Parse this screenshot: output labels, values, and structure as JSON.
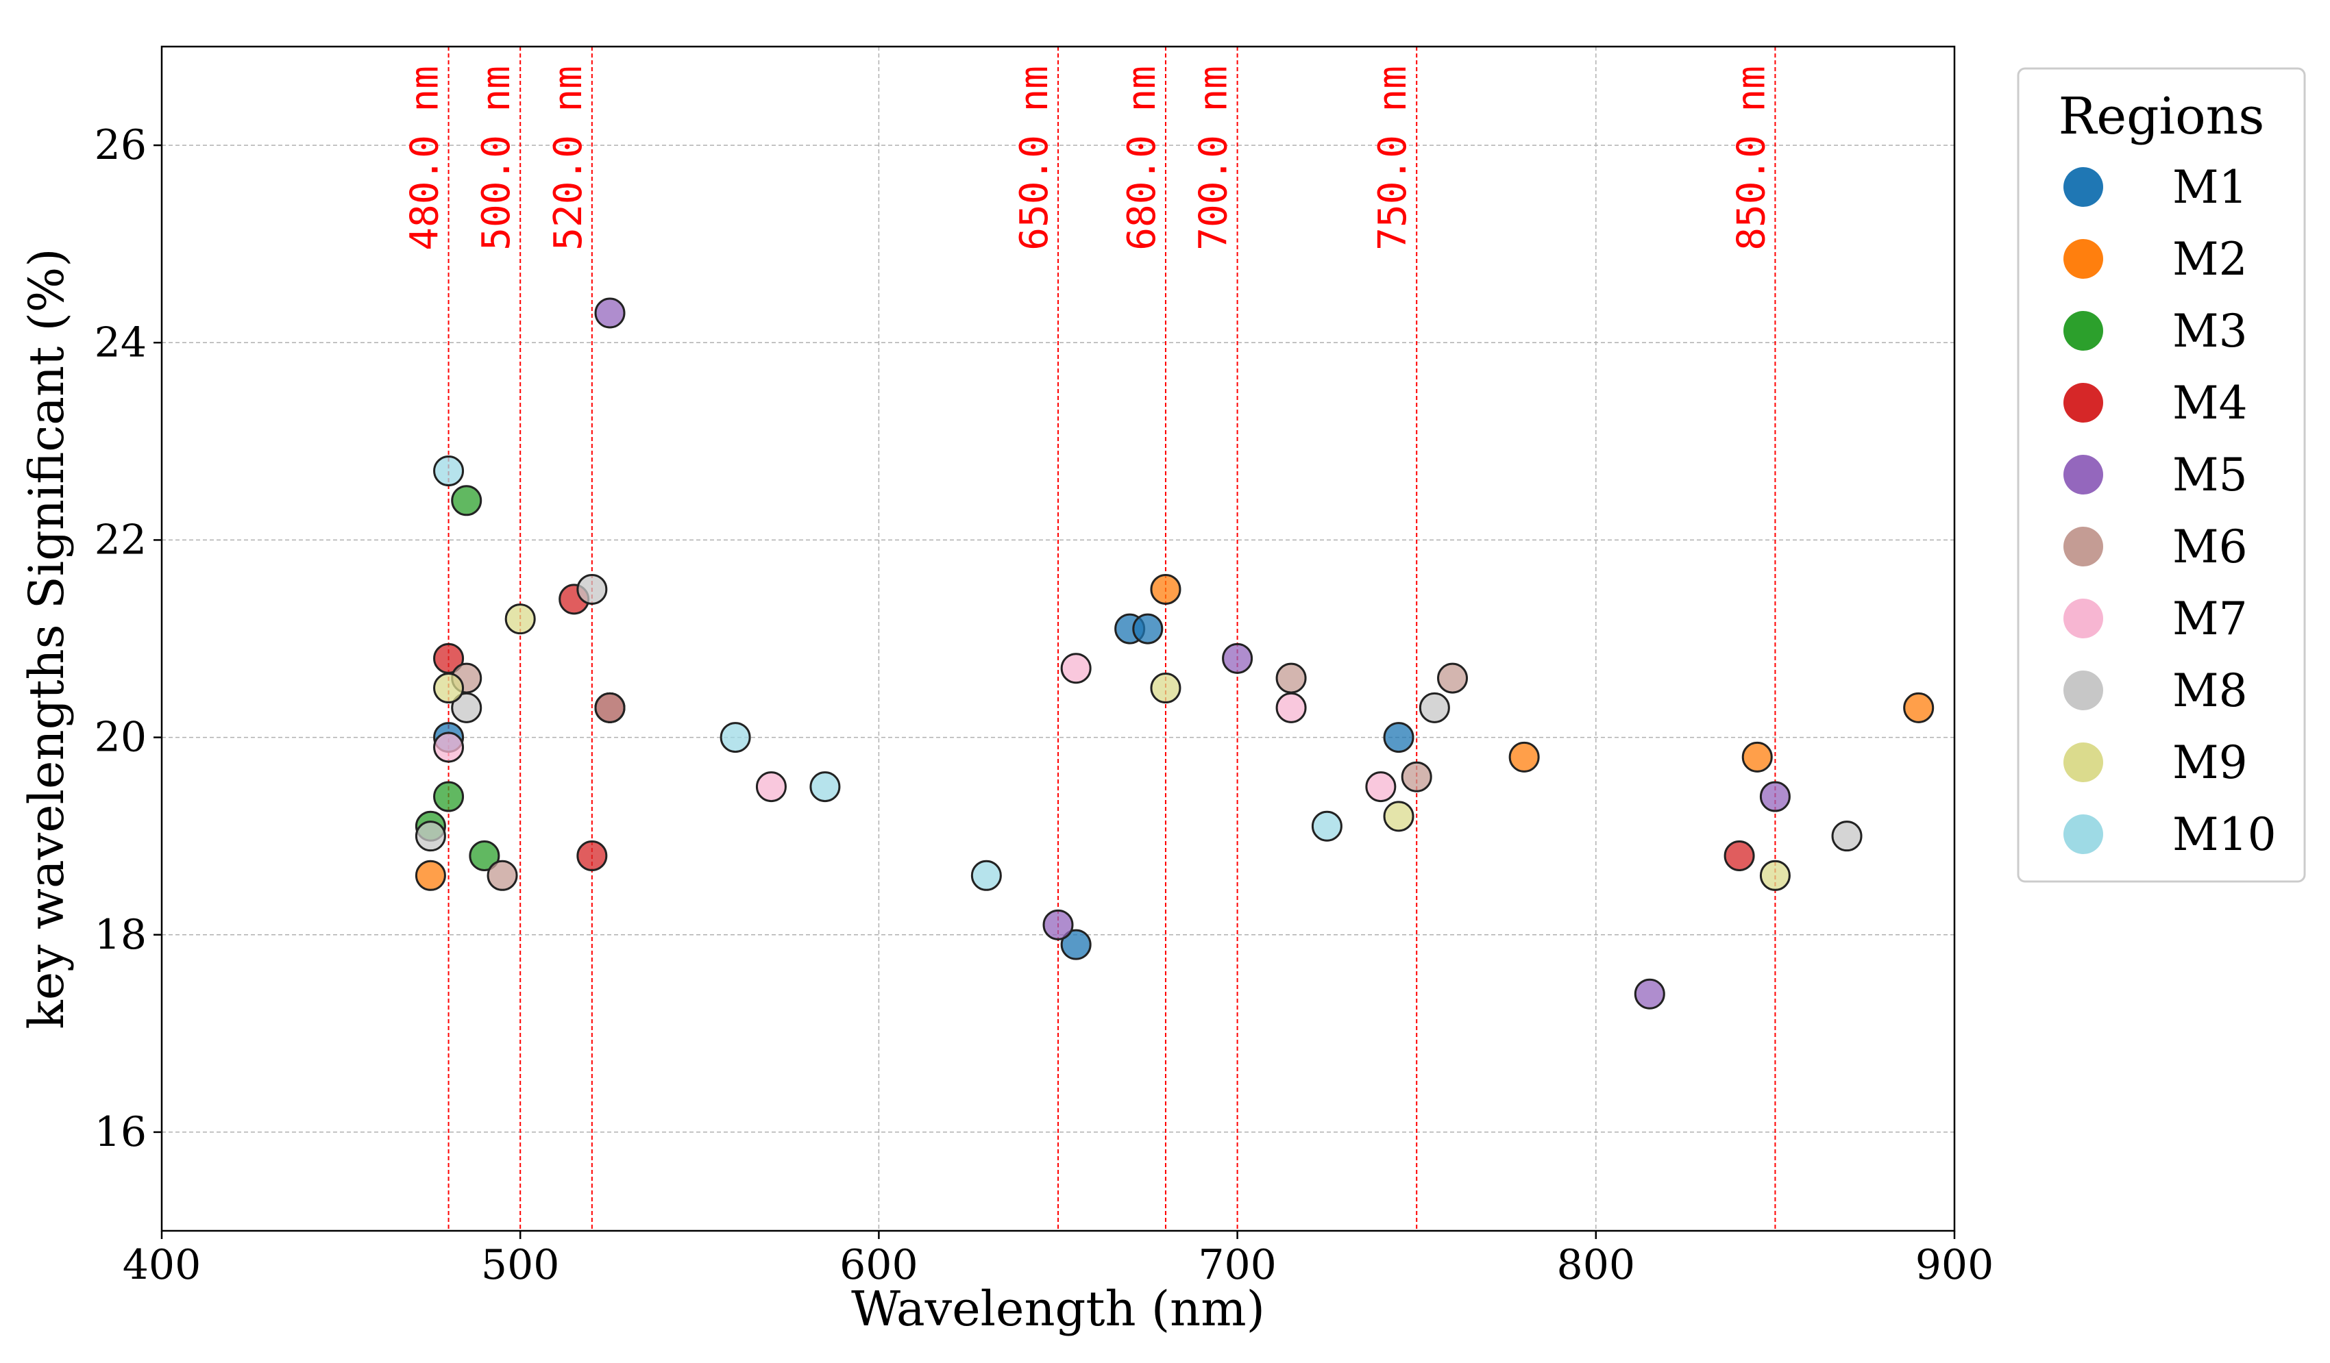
{
  "chart_data": {
    "type": "scatter",
    "xlabel": "Wavelength (nm)",
    "ylabel": "key wavelengths Significant (%)",
    "xlim": [
      400,
      900
    ],
    "ylim": [
      15,
      27
    ],
    "xticks": [
      400,
      500,
      600,
      700,
      800,
      900
    ],
    "yticks": [
      16,
      18,
      20,
      22,
      24,
      26
    ],
    "grid": true,
    "legend": {
      "title": "Regions",
      "placement": "outside-right"
    },
    "vlines": [
      {
        "x": 480,
        "label": "480.0 nm"
      },
      {
        "x": 500,
        "label": "500.0 nm"
      },
      {
        "x": 520,
        "label": "520.0 nm"
      },
      {
        "x": 650,
        "label": "650.0 nm"
      },
      {
        "x": 680,
        "label": "680.0 nm"
      },
      {
        "x": 700,
        "label": "700.0 nm"
      },
      {
        "x": 750,
        "label": "750.0 nm"
      },
      {
        "x": 850,
        "label": "850.0 nm"
      }
    ],
    "vline_color": "#ff0000",
    "series": [
      {
        "name": "M1",
        "color": "#1f77b4",
        "points": [
          [
            480,
            20.0
          ],
          [
            525,
            20.3
          ],
          [
            655,
            17.9
          ],
          [
            670,
            21.1
          ],
          [
            675,
            21.1
          ],
          [
            745,
            20.0
          ]
        ]
      },
      {
        "name": "M2",
        "color": "#ff7f0e",
        "points": [
          [
            475,
            18.6
          ],
          [
            680,
            21.5
          ],
          [
            780,
            19.8
          ],
          [
            845,
            19.8
          ],
          [
            890,
            20.3
          ]
        ]
      },
      {
        "name": "M3",
        "color": "#2ca02c",
        "points": [
          [
            475,
            19.1
          ],
          [
            480,
            19.4
          ],
          [
            485,
            22.4
          ],
          [
            490,
            18.8
          ]
        ]
      },
      {
        "name": "M4",
        "color": "#d62728",
        "points": [
          [
            480,
            20.8
          ],
          [
            515,
            21.4
          ],
          [
            520,
            18.8
          ],
          [
            525,
            20.3
          ],
          [
            840,
            18.8
          ]
        ]
      },
      {
        "name": "M5",
        "color": "#9467bd",
        "points": [
          [
            525,
            24.3
          ],
          [
            650,
            18.1
          ],
          [
            700,
            20.8
          ],
          [
            815,
            17.4
          ],
          [
            850,
            19.4
          ]
        ]
      },
      {
        "name": "M6",
        "color": "#c49c94",
        "points": [
          [
            485,
            20.6
          ],
          [
            495,
            18.6
          ],
          [
            525,
            20.3
          ],
          [
            715,
            20.6
          ],
          [
            750,
            19.6
          ],
          [
            760,
            20.6
          ]
        ]
      },
      {
        "name": "M7",
        "color": "#f7b6d2",
        "points": [
          [
            480,
            19.9
          ],
          [
            570,
            19.5
          ],
          [
            655,
            20.7
          ],
          [
            715,
            20.3
          ],
          [
            740,
            19.5
          ]
        ]
      },
      {
        "name": "M8",
        "color": "#c7c7c7",
        "points": [
          [
            475,
            19.0
          ],
          [
            485,
            20.3
          ],
          [
            520,
            21.5
          ],
          [
            755,
            20.3
          ],
          [
            870,
            19.0
          ]
        ]
      },
      {
        "name": "M9",
        "color": "#dbdb8d",
        "points": [
          [
            480,
            20.5
          ],
          [
            500,
            21.2
          ],
          [
            680,
            20.5
          ],
          [
            745,
            19.2
          ],
          [
            850,
            18.6
          ]
        ]
      },
      {
        "name": "M10",
        "color": "#9edae5",
        "points": [
          [
            480,
            22.7
          ],
          [
            560,
            20.0
          ],
          [
            585,
            19.5
          ],
          [
            630,
            18.6
          ],
          [
            725,
            19.1
          ]
        ]
      }
    ]
  }
}
